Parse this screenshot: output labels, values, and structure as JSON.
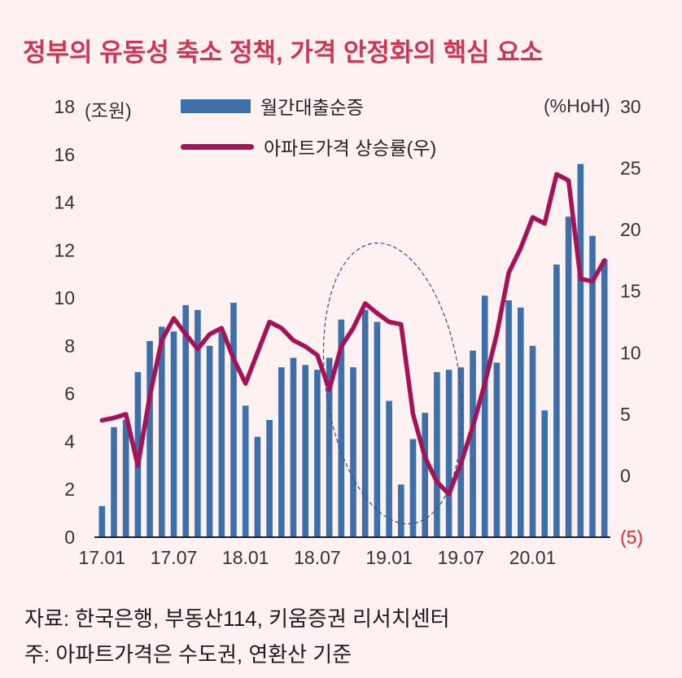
{
  "title": "정부의 유동성 축소 정책, 가격 안정화의 핵심 요소",
  "legend": [
    {
      "label": "월간대출순증",
      "type": "bar",
      "color": "#3e6fa8"
    },
    {
      "label": "아파트가격 상승률(우)",
      "type": "line",
      "color": "#a51356"
    }
  ],
  "axes": {
    "left_unit": "(조원)",
    "right_unit": "(%HoH)",
    "left_ticks": [
      "18",
      "16",
      "14",
      "12",
      "10",
      "8",
      "6",
      "4",
      "2",
      "0"
    ],
    "right_ticks": [
      "30",
      "25",
      "20",
      "15",
      "10",
      "5",
      "0",
      "(5)"
    ],
    "x_ticks": [
      "17.01",
      "17.07",
      "18.01",
      "18.07",
      "19.01",
      "19.07",
      "20.01"
    ]
  },
  "colors": {
    "background": "#fdf2f1",
    "title": "#d23552",
    "bar": "#3e6fa8",
    "line": "#a51356",
    "ellipse": "#35507f",
    "negative_tick": "#e02b2b",
    "axis_line": "#222222"
  },
  "footnotes": [
    "자료: 한국은행, 부동산114, 키움증권 리서치센터",
    "주: 아파트가격은 수도권, 연환산 기준"
  ],
  "chart_data": {
    "type": "bar",
    "combo": "bar+line dual axis",
    "title": "정부의 유동성 축소 정책, 가격 안정화의 핵심 요소",
    "x": [
      "17.01",
      "17.02",
      "17.03",
      "17.04",
      "17.05",
      "17.06",
      "17.07",
      "17.08",
      "17.09",
      "17.10",
      "17.11",
      "17.12",
      "18.01",
      "18.02",
      "18.03",
      "18.04",
      "18.05",
      "18.06",
      "18.07",
      "18.08",
      "18.09",
      "18.10",
      "18.11",
      "18.12",
      "19.01",
      "19.02",
      "19.03",
      "19.04",
      "19.05",
      "19.06",
      "19.07",
      "19.08",
      "19.09",
      "19.10",
      "19.11",
      "19.12",
      "20.01",
      "20.02",
      "20.03",
      "20.04",
      "20.05",
      "20.06",
      "20.07"
    ],
    "series": [
      {
        "name": "월간대출순증",
        "type": "bar",
        "axis": "left",
        "color": "#3e6fa8",
        "values": [
          1.3,
          4.6,
          4.9,
          6.9,
          8.2,
          8.8,
          8.6,
          9.7,
          9.5,
          8.0,
          8.6,
          9.8,
          5.5,
          4.2,
          4.9,
          7.1,
          7.5,
          7.2,
          7.0,
          7.5,
          9.1,
          7.1,
          9.5,
          9.0,
          5.7,
          2.2,
          4.1,
          5.2,
          6.9,
          7.0,
          7.1,
          7.8,
          10.1,
          7.3,
          9.9,
          9.6,
          8.0,
          5.3,
          11.4,
          13.4,
          15.6,
          12.6,
          11.6
        ]
      },
      {
        "name": "아파트가격 상승률(우)",
        "type": "line",
        "axis": "right",
        "color": "#a51356",
        "values": [
          4.5,
          4.7,
          5.0,
          0.8,
          6.5,
          11.0,
          12.8,
          11.5,
          10.3,
          11.5,
          12.0,
          9.5,
          7.5,
          10.0,
          12.5,
          12.0,
          11.0,
          10.5,
          9.8,
          7.0,
          10.5,
          12.0,
          14.0,
          13.2,
          12.5,
          12.3,
          5.0,
          1.5,
          -0.5,
          -1.5,
          1.0,
          4.0,
          7.5,
          11.5,
          16.5,
          18.5,
          21.0,
          20.5,
          24.5,
          24.0,
          16.0,
          15.8,
          17.5
        ]
      }
    ],
    "left_axis": {
      "label": "(조원)",
      "range": [
        0,
        18
      ]
    },
    "right_axis": {
      "label": "(%HoH)",
      "range": [
        -5,
        30
      ]
    },
    "grid": false,
    "legend_position": "top-left",
    "annotation": {
      "shape": "dashed-ellipse",
      "center_month_index": 24.3,
      "center_value_right": 7.5,
      "rx_months": 5.6,
      "ry_value_right": 11.5,
      "rotation_deg": -8,
      "color": "#35507f"
    }
  }
}
